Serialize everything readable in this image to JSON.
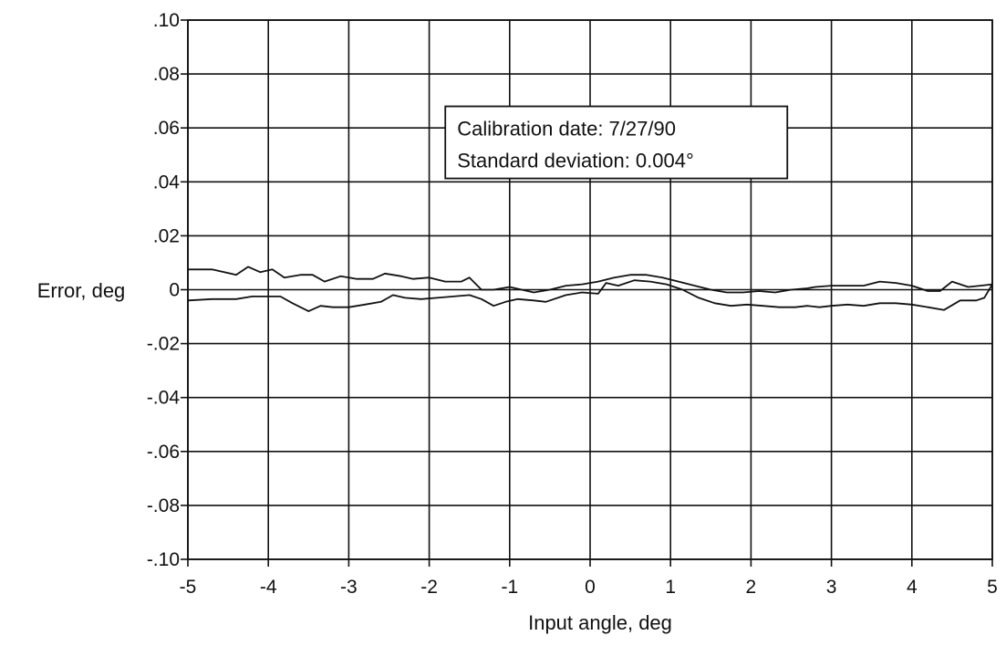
{
  "chart_data": {
    "type": "line",
    "title": "",
    "xlabel": "Input angle, deg",
    "ylabel": "Error, deg",
    "xlim": [
      -5,
      5
    ],
    "ylim": [
      -0.1,
      0.1
    ],
    "grid": true,
    "x_ticks": [
      {
        "value": -5,
        "label": "-5"
      },
      {
        "value": -4,
        "label": "-4"
      },
      {
        "value": -3,
        "label": "-3"
      },
      {
        "value": -2,
        "label": "-2"
      },
      {
        "value": -1,
        "label": "-1"
      },
      {
        "value": 0,
        "label": "0"
      },
      {
        "value": 1,
        "label": "1"
      },
      {
        "value": 2,
        "label": "2"
      },
      {
        "value": 3,
        "label": "3"
      },
      {
        "value": 4,
        "label": "4"
      },
      {
        "value": 5,
        "label": "5"
      }
    ],
    "y_ticks": [
      {
        "value": 0.1,
        "label": ".10"
      },
      {
        "value": 0.08,
        "label": ".08"
      },
      {
        "value": 0.06,
        "label": ".06"
      },
      {
        "value": 0.04,
        "label": ".04"
      },
      {
        "value": 0.02,
        "label": ".02"
      },
      {
        "value": 0,
        "label": "0"
      },
      {
        "value": -0.02,
        "label": "-.02"
      },
      {
        "value": -0.04,
        "label": "-.04"
      },
      {
        "value": -0.06,
        "label": "-.06"
      },
      {
        "value": -0.08,
        "label": "-.08"
      },
      {
        "value": -0.1,
        "label": "-.10"
      }
    ],
    "annotation": {
      "lines": [
        "Calibration date: 7/27/90",
        "Standard deviation: 0.004°"
      ],
      "anchor": [
        -1.8,
        0.068
      ]
    },
    "series": [
      {
        "x": [
          -5.0,
          -4.7,
          -4.4,
          -4.25,
          -4.1,
          -3.95,
          -3.8,
          -3.6,
          -3.45,
          -3.3,
          -3.1,
          -2.9,
          -2.7,
          -2.55,
          -2.35,
          -2.2,
          -2.0,
          -1.8,
          -1.6,
          -1.5,
          -1.35,
          -1.2,
          -1.0,
          -0.85,
          -0.7,
          -0.5,
          -0.3,
          -0.1,
          0.1,
          0.3,
          0.5,
          0.7,
          0.9,
          1.1,
          1.3,
          1.5,
          1.7,
          1.9,
          2.1,
          2.3,
          2.5,
          2.7,
          2.8,
          3.0,
          3.2,
          3.4,
          3.6,
          3.8,
          4.0,
          4.2,
          4.35,
          4.5,
          4.7,
          4.85,
          5.0
        ],
        "values": [
          0.0075,
          0.0075,
          0.0055,
          0.0085,
          0.0065,
          0.0075,
          0.0045,
          0.0055,
          0.0055,
          0.003,
          0.005,
          0.004,
          0.004,
          0.006,
          0.005,
          0.004,
          0.0045,
          0.003,
          0.003,
          0.0045,
          0.0,
          0.0,
          0.001,
          0.0,
          -0.001,
          0.0,
          0.0015,
          0.002,
          0.003,
          0.0045,
          0.0055,
          0.0055,
          0.0045,
          0.003,
          0.0015,
          0.0,
          -0.001,
          -0.001,
          -0.0005,
          -0.001,
          0.0,
          0.0005,
          0.001,
          0.0015,
          0.0015,
          0.0015,
          0.003,
          0.0025,
          0.0015,
          -0.0005,
          -0.0005,
          0.003,
          0.001,
          0.0015,
          0.002
        ]
      },
      {
        "x": [
          -5.0,
          -4.7,
          -4.4,
          -4.2,
          -4.0,
          -3.85,
          -3.7,
          -3.5,
          -3.35,
          -3.2,
          -3.0,
          -2.8,
          -2.6,
          -2.45,
          -2.3,
          -2.1,
          -1.9,
          -1.7,
          -1.5,
          -1.35,
          -1.2,
          -1.05,
          -0.9,
          -0.7,
          -0.55,
          -0.3,
          -0.1,
          0.1,
          0.2,
          0.35,
          0.55,
          0.75,
          0.95,
          1.15,
          1.35,
          1.55,
          1.75,
          1.95,
          2.15,
          2.35,
          2.55,
          2.7,
          2.85,
          3.0,
          3.2,
          3.4,
          3.6,
          3.8,
          4.0,
          4.2,
          4.4,
          4.6,
          4.8,
          4.9,
          5.0
        ],
        "values": [
          -0.004,
          -0.0035,
          -0.0035,
          -0.0025,
          -0.0025,
          -0.0025,
          -0.005,
          -0.008,
          -0.006,
          -0.0065,
          -0.0065,
          -0.0055,
          -0.0045,
          -0.002,
          -0.003,
          -0.0035,
          -0.003,
          -0.0025,
          -0.002,
          -0.0035,
          -0.006,
          -0.0045,
          -0.0035,
          -0.004,
          -0.0045,
          -0.002,
          -0.001,
          -0.0015,
          0.0025,
          0.0015,
          0.0035,
          0.003,
          0.002,
          0.0,
          -0.003,
          -0.005,
          -0.006,
          -0.0055,
          -0.006,
          -0.0065,
          -0.0065,
          -0.006,
          -0.0065,
          -0.006,
          -0.0055,
          -0.006,
          -0.005,
          -0.005,
          -0.0055,
          -0.0065,
          -0.0075,
          -0.004,
          -0.004,
          -0.003,
          0.002
        ]
      }
    ]
  }
}
